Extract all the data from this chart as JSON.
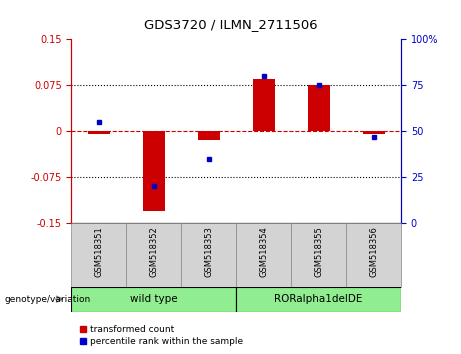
{
  "title": "GDS3720 / ILMN_2711506",
  "samples": [
    "GSM518351",
    "GSM518352",
    "GSM518353",
    "GSM518354",
    "GSM518355",
    "GSM518356"
  ],
  "red_bars": [
    -0.005,
    -0.13,
    -0.015,
    0.085,
    0.075,
    -0.005
  ],
  "blue_dots": [
    55,
    20,
    35,
    80,
    75,
    47
  ],
  "ylim_left": [
    -0.15,
    0.15
  ],
  "ylim_right": [
    0,
    100
  ],
  "yticks_left": [
    -0.15,
    -0.075,
    0,
    0.075,
    0.15
  ],
  "yticks_right": [
    0,
    25,
    50,
    75,
    100
  ],
  "ytick_labels_left": [
    "-0.15",
    "-0.075",
    "0",
    "0.075",
    "0.15"
  ],
  "ytick_labels_right": [
    "0",
    "25",
    "50",
    "75",
    "100%"
  ],
  "group_label": "genotype/variation",
  "group1_label": "wild type",
  "group2_label": "RORalpha1delDE",
  "group_color": "#90ee90",
  "legend_red": "transformed count",
  "legend_blue": "percentile rank within the sample",
  "bar_color": "#cc0000",
  "dot_color": "#0000cc",
  "background_color": "#ffffff",
  "left_axis_color": "#cc0000",
  "right_axis_color": "#0000cc",
  "label_cell_color": "#d3d3d3",
  "bar_width": 0.4
}
